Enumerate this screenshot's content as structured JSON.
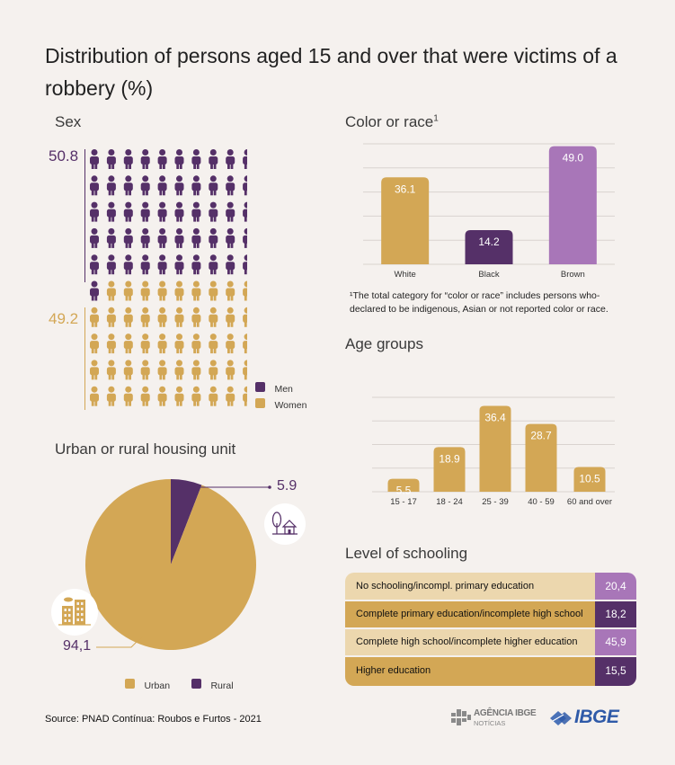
{
  "title": "Distribution of persons aged 15 and over that were victims of a robbery (%)",
  "colors": {
    "purple": "#553068",
    "gold": "#d3a755",
    "light_purple": "#a876b8",
    "grid": "#d9d3cf",
    "bg": "#f5f1ee"
  },
  "sex": {
    "heading": "Sex",
    "men_value": "50.8",
    "women_value": "49.2",
    "legend_men": "Men",
    "legend_women": "Women"
  },
  "color_race": {
    "heading": "Color or race",
    "heading_sup": "1",
    "footnote_line1": "¹The total category for “color or race” includes persons who-",
    "footnote_line2": "declared to be indigenous, Asian or not reported color or race."
  },
  "age": {
    "heading": "Age groups"
  },
  "urban_rural": {
    "heading": "Urban or rural housing unit",
    "urban_label": "94,1",
    "rural_label": "5.9",
    "legend_urban": "Urban",
    "legend_rural": "Rural",
    "city-icon": "city-buildings-icon",
    "rural-icon": "tree-house-icon"
  },
  "schooling": {
    "heading": "Level of schooling",
    "rows": [
      {
        "label": "No schooling/incompl. primary education",
        "value": "20,4"
      },
      {
        "label": "Complete primary education/incomplete high school",
        "value": "18,2"
      },
      {
        "label": "Complete high school/incomplete higher education",
        "value": "45,9"
      },
      {
        "label": "Higher education",
        "value": "15,5"
      }
    ]
  },
  "footer": {
    "source": "Source: PNAD Contínua: Roubos e Furtos - 2021",
    "agencia_line1": "AGÊNCIA IBGE",
    "agencia_line2": "NOTÍCIAS",
    "ibge": "IBGE"
  },
  "chart_data": [
    {
      "type": "pictogram",
      "title": "Sex",
      "categories": [
        "Men",
        "Women"
      ],
      "values": [
        50.8,
        49.2
      ],
      "unit": "%"
    },
    {
      "type": "bar",
      "title": "Color or race",
      "categories": [
        "White",
        "Black",
        "Brown"
      ],
      "values": [
        36.1,
        14.2,
        49.0
      ],
      "value_labels": [
        "36.1",
        "14.2",
        "49.0"
      ],
      "bar_colors": [
        "#d3a755",
        "#553068",
        "#a876b8"
      ],
      "ylim": [
        0,
        50
      ],
      "grid": true
    },
    {
      "type": "bar",
      "title": "Age groups",
      "categories": [
        "15 - 17",
        "18 - 24",
        "25 - 39",
        "40 - 59",
        "60  and over"
      ],
      "values": [
        5.5,
        18.9,
        36.4,
        28.7,
        10.5
      ],
      "value_labels": [
        "5.5",
        "18.9",
        "36.4",
        "28.7",
        "10.5"
      ],
      "ylim": [
        0,
        40
      ],
      "grid": true
    },
    {
      "type": "pie",
      "title": "Urban or rural housing unit",
      "categories": [
        "Urban",
        "Rural"
      ],
      "values": [
        94.1,
        5.9
      ],
      "value_labels": [
        "94,1",
        "5.9"
      ],
      "slice_colors": [
        "#d3a755",
        "#553068"
      ]
    },
    {
      "type": "table",
      "title": "Level of schooling",
      "categories": [
        "No schooling/incompl. primary education",
        "Complete primary education/incomplete high school",
        "Complete high school/incomplete higher education",
        "Higher education"
      ],
      "values": [
        20.4,
        18.2,
        45.9,
        15.5
      ]
    }
  ]
}
